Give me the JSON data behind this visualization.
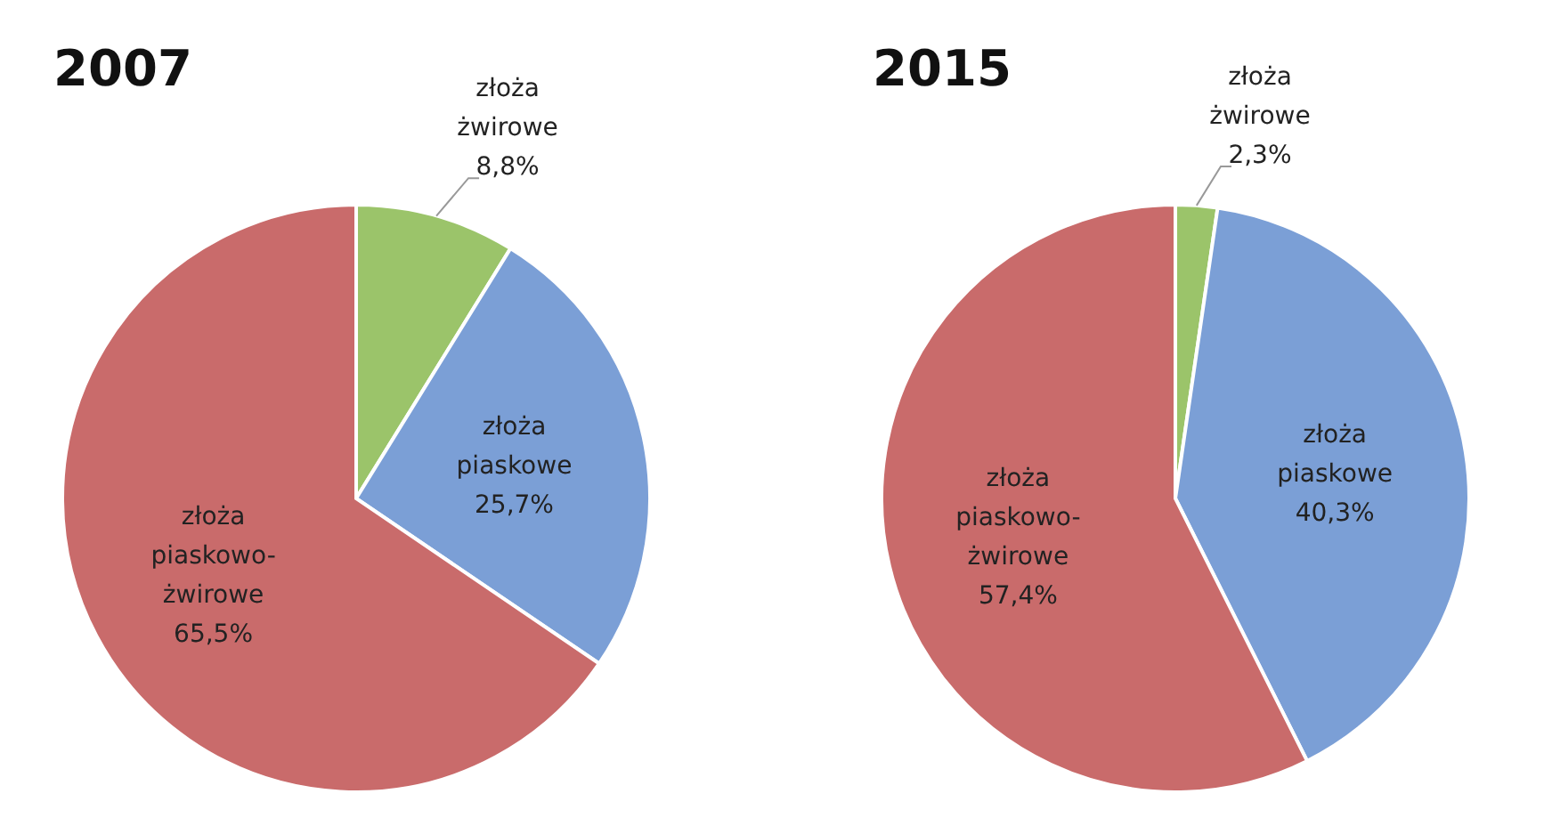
{
  "chart_data": [
    {
      "type": "pie",
      "title": "2007",
      "categories": [
        "złoża żwirowe",
        "złoża piaskowe",
        "złoża piaskowo-żwirowe"
      ],
      "values": [
        8.8,
        25.7,
        65.5
      ],
      "value_labels": [
        "8,8%",
        "25,7%",
        "65,5%"
      ],
      "colors": [
        "#9bc46a",
        "#7b9fd6",
        "#c96b6b"
      ]
    },
    {
      "type": "pie",
      "title": "2015",
      "categories": [
        "złoża żwirowe",
        "złoża piaskowe",
        "złoża piaskowo-żwirowe"
      ],
      "values": [
        2.3,
        40.3,
        57.4
      ],
      "value_labels": [
        "2,3%",
        "40,3%",
        "57,4%"
      ],
      "colors": [
        "#9bc46a",
        "#7b9fd6",
        "#c96b6b"
      ]
    }
  ]
}
